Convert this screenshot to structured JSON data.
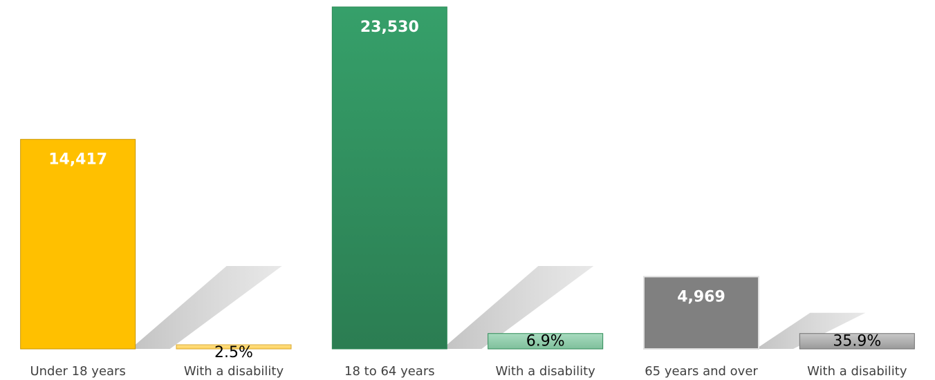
{
  "chart_data": {
    "type": "bar",
    "title": "",
    "xlabel": "",
    "ylabel": "",
    "categories": [
      "Under 18 years",
      "With a disability",
      "18 to 64 years",
      "With a disability",
      "65 years and over",
      "With a disability"
    ],
    "bars": [
      {
        "category": "Under 18 years",
        "value": 14417,
        "label": "14,417",
        "color": "#FFC000",
        "label_color": "#FFFFFF",
        "group": "Under 18 years",
        "kind": "population"
      },
      {
        "category": "With a disability",
        "value": 2.5,
        "label": "2.5%",
        "color": "#FFD966",
        "label_color": "#000000",
        "group": "Under 18 years",
        "kind": "percent"
      },
      {
        "category": "18 to 64 years",
        "value": 23530,
        "label": "23,530",
        "color": "#2E8B57",
        "label_color": "#FFFFFF",
        "group": "18 to 64 years",
        "kind": "population"
      },
      {
        "category": "With a disability",
        "value": 6.9,
        "label": "6.9%",
        "color": "#93CDAE",
        "label_color": "#000000",
        "group": "18 to 64 years",
        "kind": "percent"
      },
      {
        "category": "65 years and over",
        "value": 4969,
        "label": "4,969",
        "color": "#808080",
        "label_color": "#FFFFFF",
        "group": "65 years and over",
        "kind": "population"
      },
      {
        "category": "With a disability",
        "value": 35.9,
        "label": "35.9%",
        "color": "#A6A6A6",
        "label_color": "#000000",
        "group": "65 years and over",
        "kind": "percent"
      }
    ],
    "percent_bar_heights_fraction_of_max": [
      0.006,
      0.045,
      0.045
    ],
    "legend": "none",
    "grid": false
  }
}
